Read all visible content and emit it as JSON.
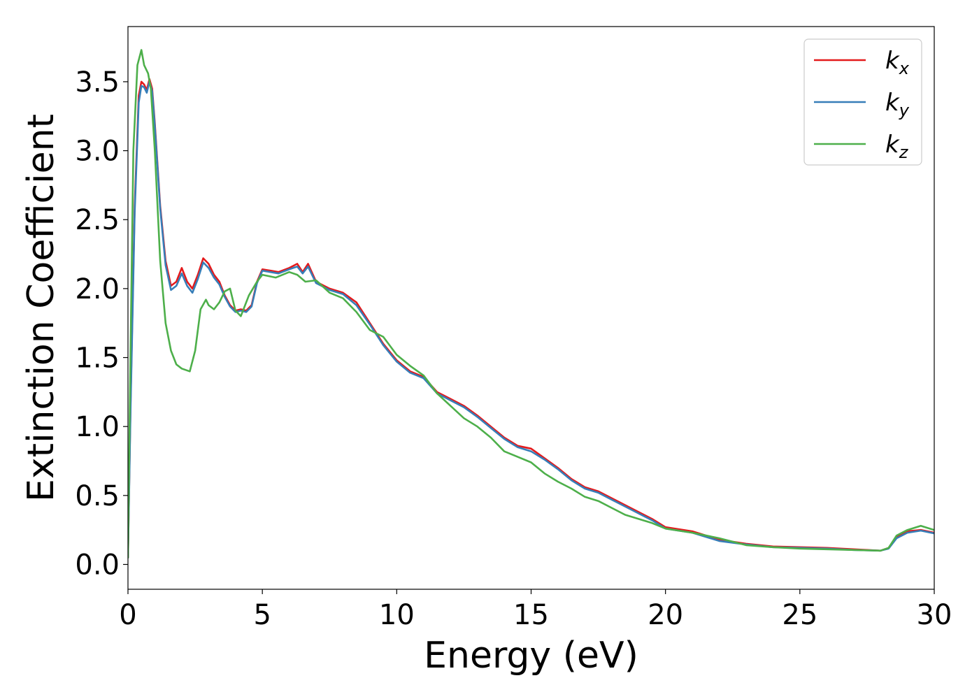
{
  "chart_data": {
    "type": "line",
    "title": "",
    "xlabel": "Energy (eV)",
    "ylabel": "Extinction Coefficient",
    "xlim": [
      0,
      30
    ],
    "ylim": [
      -0.18,
      3.9
    ],
    "xticks": [
      0,
      5,
      10,
      15,
      20,
      25,
      30
    ],
    "xtick_labels": [
      "0",
      "5",
      "10",
      "15",
      "20",
      "25",
      "30"
    ],
    "yticks": [
      0.0,
      0.5,
      1.0,
      1.5,
      2.0,
      2.5,
      3.0,
      3.5
    ],
    "ytick_labels": [
      "0.0",
      "0.5",
      "1.0",
      "1.5",
      "2.0",
      "2.5",
      "3.0",
      "3.5"
    ],
    "grid": false,
    "legend_position": "top-right",
    "series": [
      {
        "name": "k",
        "subscript": "x",
        "color": "#e41a1c",
        "x": [
          0,
          0.1,
          0.25,
          0.4,
          0.5,
          0.6,
          0.7,
          0.8,
          0.9,
          1.0,
          1.2,
          1.4,
          1.6,
          1.8,
          2.0,
          2.2,
          2.4,
          2.6,
          2.8,
          3.0,
          3.2,
          3.4,
          3.6,
          3.8,
          4.0,
          4.2,
          4.4,
          4.6,
          4.8,
          5.0,
          5.3,
          5.6,
          6.0,
          6.3,
          6.5,
          6.7,
          7.0,
          7.5,
          8.0,
          8.5,
          9.0,
          9.5,
          10.0,
          10.5,
          11.0,
          11.5,
          12.0,
          12.5,
          13.0,
          13.5,
          14.0,
          14.5,
          15.0,
          15.5,
          16.0,
          16.5,
          17.0,
          17.5,
          18.0,
          18.5,
          19.0,
          19.5,
          20.0,
          21.0,
          22.0,
          23.0,
          24.0,
          25.0,
          26.0,
          27.0,
          28.0,
          28.3,
          28.6,
          29.0,
          29.5,
          30.0
        ],
        "y": [
          0.05,
          1.2,
          2.6,
          3.4,
          3.5,
          3.48,
          3.44,
          3.52,
          3.45,
          3.2,
          2.6,
          2.2,
          2.02,
          2.05,
          2.15,
          2.05,
          2.0,
          2.1,
          2.22,
          2.18,
          2.1,
          2.05,
          1.95,
          1.88,
          1.84,
          1.85,
          1.84,
          1.88,
          2.05,
          2.14,
          2.13,
          2.12,
          2.15,
          2.18,
          2.12,
          2.18,
          2.05,
          2.0,
          1.97,
          1.9,
          1.75,
          1.6,
          1.48,
          1.4,
          1.36,
          1.25,
          1.2,
          1.15,
          1.08,
          1.0,
          0.92,
          0.86,
          0.84,
          0.77,
          0.7,
          0.62,
          0.56,
          0.53,
          0.48,
          0.43,
          0.38,
          0.33,
          0.27,
          0.24,
          0.18,
          0.15,
          0.13,
          0.125,
          0.12,
          0.11,
          0.1,
          0.12,
          0.2,
          0.24,
          0.25,
          0.23
        ]
      },
      {
        "name": "k",
        "subscript": "y",
        "color": "#377eb8",
        "x": [
          0,
          0.1,
          0.25,
          0.4,
          0.5,
          0.6,
          0.7,
          0.8,
          0.9,
          1.0,
          1.2,
          1.4,
          1.6,
          1.8,
          2.0,
          2.2,
          2.4,
          2.6,
          2.8,
          3.0,
          3.2,
          3.4,
          3.6,
          3.8,
          4.0,
          4.2,
          4.4,
          4.6,
          4.8,
          5.0,
          5.3,
          5.6,
          6.0,
          6.3,
          6.5,
          6.7,
          7.0,
          7.5,
          8.0,
          8.5,
          9.0,
          9.5,
          10.0,
          10.5,
          11.0,
          11.5,
          12.0,
          12.5,
          13.0,
          13.5,
          14.0,
          14.5,
          15.0,
          15.5,
          16.0,
          16.5,
          17.0,
          17.5,
          18.0,
          18.5,
          19.0,
          19.5,
          20.0,
          21.0,
          22.0,
          23.0,
          24.0,
          25.0,
          26.0,
          27.0,
          28.0,
          28.3,
          28.6,
          29.0,
          29.5,
          30.0
        ],
        "y": [
          0.05,
          1.15,
          2.55,
          3.35,
          3.47,
          3.46,
          3.42,
          3.5,
          3.43,
          3.18,
          2.58,
          2.17,
          1.99,
          2.02,
          2.11,
          2.02,
          1.97,
          2.07,
          2.19,
          2.15,
          2.08,
          2.03,
          1.94,
          1.87,
          1.83,
          1.84,
          1.83,
          1.87,
          2.04,
          2.13,
          2.12,
          2.11,
          2.14,
          2.16,
          2.11,
          2.16,
          2.04,
          1.99,
          1.96,
          1.88,
          1.74,
          1.59,
          1.47,
          1.39,
          1.35,
          1.24,
          1.19,
          1.14,
          1.07,
          0.99,
          0.91,
          0.85,
          0.82,
          0.76,
          0.69,
          0.61,
          0.55,
          0.52,
          0.47,
          0.42,
          0.37,
          0.32,
          0.26,
          0.23,
          0.17,
          0.145,
          0.125,
          0.12,
          0.115,
          0.105,
          0.1,
          0.115,
          0.19,
          0.23,
          0.245,
          0.225
        ]
      },
      {
        "name": "k",
        "subscript": "z",
        "color": "#4daf4a",
        "x": [
          0,
          0.1,
          0.2,
          0.35,
          0.5,
          0.6,
          0.75,
          0.85,
          1.0,
          1.2,
          1.4,
          1.6,
          1.8,
          2.0,
          2.3,
          2.5,
          2.7,
          2.9,
          3.0,
          3.2,
          3.4,
          3.6,
          3.8,
          4.0,
          4.2,
          4.5,
          4.8,
          5.0,
          5.5,
          6.0,
          6.3,
          6.6,
          7.0,
          7.5,
          8.0,
          8.5,
          9.0,
          9.5,
          10.0,
          10.5,
          11.0,
          11.5,
          12.0,
          12.5,
          13.0,
          13.5,
          14.0,
          14.5,
          15.0,
          15.5,
          16.0,
          16.5,
          17.0,
          17.5,
          18.0,
          18.5,
          19.0,
          19.5,
          20.0,
          21.0,
          22.0,
          23.0,
          24.0,
          25.0,
          26.0,
          27.0,
          28.0,
          28.3,
          28.6,
          29.0,
          29.5,
          30.0
        ],
        "y": [
          0.05,
          1.6,
          3.0,
          3.62,
          3.73,
          3.62,
          3.56,
          3.45,
          3.0,
          2.2,
          1.75,
          1.55,
          1.45,
          1.42,
          1.4,
          1.55,
          1.85,
          1.92,
          1.88,
          1.85,
          1.9,
          1.98,
          2.0,
          1.84,
          1.8,
          1.95,
          2.05,
          2.1,
          2.08,
          2.12,
          2.1,
          2.05,
          2.06,
          1.97,
          1.93,
          1.83,
          1.7,
          1.65,
          1.52,
          1.44,
          1.37,
          1.24,
          1.15,
          1.06,
          1.0,
          0.92,
          0.82,
          0.78,
          0.74,
          0.66,
          0.6,
          0.55,
          0.49,
          0.46,
          0.41,
          0.36,
          0.33,
          0.3,
          0.26,
          0.23,
          0.19,
          0.14,
          0.125,
          0.115,
          0.11,
          0.105,
          0.1,
          0.12,
          0.21,
          0.25,
          0.28,
          0.25
        ]
      }
    ]
  }
}
